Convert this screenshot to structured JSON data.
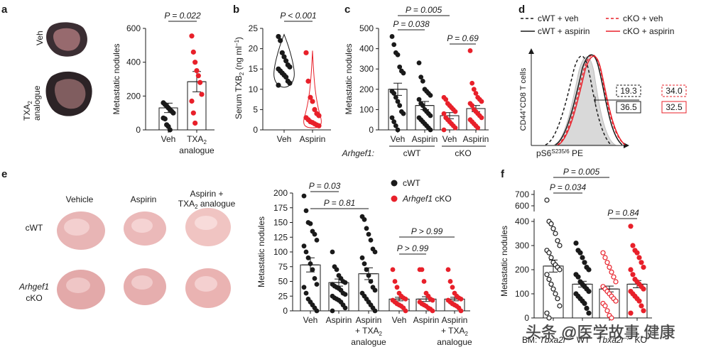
{
  "panels": {
    "a": {
      "letter": "a",
      "image_labels": [
        "Veh",
        "TXA",
        "analogue"
      ],
      "image_label_sub": "2",
      "chart_data": {
        "type": "bar",
        "categories": [
          "Veh",
          "TXA2 analogue"
        ],
        "tick_labels": [
          "Veh",
          "TXA",
          "analogue"
        ],
        "means": [
          130,
          285
        ],
        "sem": [
          28,
          60
        ],
        "points": [
          [
            160,
            150,
            140,
            130,
            120,
            110,
            100,
            70,
            65,
            30,
            20,
            0
          ],
          [
            555,
            460,
            400,
            350,
            320,
            280,
            210,
            170,
            100,
            40
          ]
        ],
        "colors": [
          "#1a1a1a",
          "#e8202a"
        ],
        "ylabel": "Metastatic nodules",
        "yticks": [
          0,
          200,
          400,
          600
        ],
        "ylim": [
          0,
          600
        ],
        "pvalue": "P = 0.022"
      }
    },
    "b": {
      "letter": "b",
      "chart_data": {
        "type": "violin",
        "categories": [
          "Veh",
          "Aspirin"
        ],
        "points": [
          [
            23,
            22,
            19,
            18,
            17,
            16,
            15.5,
            15,
            14.5,
            14,
            13.5,
            13,
            12,
            11.5,
            11
          ],
          [
            19,
            12,
            8,
            7,
            5,
            4,
            3.5,
            3,
            2.5,
            2,
            1.8,
            1.5,
            1.2,
            1
          ]
        ],
        "colors": [
          "#1a1a1a",
          "#e8202a"
        ],
        "ylabel": "Serum TXB",
        "ylabel_sub": "2",
        "ylabel_unit": "(ng ml",
        "ylabel_sup": "−1",
        "yticks": [
          0,
          5,
          10,
          15,
          20,
          25
        ],
        "ylim": [
          0,
          25
        ],
        "pvalue": "P < 0.001"
      }
    },
    "c": {
      "letter": "c",
      "chart_data": {
        "type": "bar",
        "categories": [
          "Veh",
          "Aspirin",
          "Veh",
          "Aspirin"
        ],
        "groups": [
          "cWT",
          "cKO"
        ],
        "group_title": "Arhgef1",
        "means": [
          200,
          120,
          70,
          105
        ],
        "sem": [
          30,
          20,
          15,
          15
        ],
        "points": [
          [
            460,
            420,
            380,
            370,
            310,
            290,
            280,
            190,
            180,
            160,
            140,
            120,
            90,
            80,
            60,
            40,
            20,
            0
          ],
          [
            330,
            260,
            240,
            200,
            190,
            180,
            170,
            150,
            130,
            120,
            100,
            90,
            80,
            70,
            60,
            50,
            40,
            30,
            20,
            10,
            0
          ],
          [
            160,
            150,
            130,
            120,
            110,
            100,
            90,
            80,
            60,
            50,
            40,
            30,
            20,
            10,
            0
          ],
          [
            390,
            230,
            200,
            180,
            160,
            150,
            140,
            130,
            120,
            100,
            90,
            80,
            70,
            60,
            50,
            40,
            30,
            20,
            10
          ]
        ],
        "colors": [
          "#1a1a1a",
          "#1a1a1a",
          "#e8202a",
          "#e8202a"
        ],
        "ylabel": "Metastatic nodules",
        "yticks": [
          0,
          100,
          200,
          300,
          400,
          500
        ],
        "ylim": [
          0,
          500
        ],
        "pvalues": [
          "P = 0.005",
          "P = 0.038",
          "P = 0.69"
        ]
      }
    },
    "d": {
      "letter": "d",
      "chart_data": {
        "type": "histogram",
        "legend": [
          {
            "name": "cWT + veh",
            "color": "#1a1a1a",
            "style": "dashed"
          },
          {
            "name": "cKO + veh",
            "color": "#e8202a",
            "style": "dashed"
          },
          {
            "name": "cWT + aspirin",
            "color": "#1a1a1a",
            "style": "solid"
          },
          {
            "name": "cKO + aspirin",
            "color": "#e8202a",
            "style": "solid"
          }
        ],
        "xlabel": "pS6",
        "xlabel_sup": "S235/6",
        "xlabel_tail": " PE",
        "ylabel": "CD44",
        "ylabel_sup": "+",
        "ylabel_tail": "CD8 T cells",
        "mfi": [
          {
            "value": "19.3",
            "color": "#1a1a1a",
            "style": "dashed"
          },
          {
            "value": "34.0",
            "color": "#e8202a",
            "style": "dashed"
          },
          {
            "value": "36.5",
            "color": "#1a1a1a",
            "style": "solid"
          },
          {
            "value": "32.5",
            "color": "#e8202a",
            "style": "solid"
          }
        ]
      }
    },
    "e": {
      "letter": "e",
      "columns": [
        "Vehicle",
        "Aspirin",
        "Aspirin +",
        "TXA",
        " analogue"
      ],
      "rows": [
        "cWT",
        "Arhgef1",
        "cKO"
      ],
      "chart_data": {
        "type": "bar",
        "categories": [
          "Veh",
          "Aspirin",
          "Aspirin + TXA2 analogue",
          "Veh",
          "Aspirin",
          "Aspirin + TXA2 analogue"
        ],
        "tick_labels": [
          "Veh",
          "Aspirin",
          "Aspirin",
          "+ TXA",
          "analogue"
        ],
        "legend": [
          {
            "name": "cWT",
            "color": "#1a1a1a"
          },
          {
            "name": "Arhgef1",
            "tail": " cKO",
            "color": "#e8202a"
          }
        ],
        "means": [
          78,
          48,
          63,
          20,
          20,
          20
        ],
        "sem": [
          12,
          6,
          10,
          3,
          4,
          3
        ],
        "points": [
          [
            195,
            170,
            150,
            148,
            135,
            130,
            120,
            110,
            100,
            90,
            80,
            70,
            55,
            45,
            40,
            30,
            20,
            15,
            10,
            5,
            0
          ],
          [
            100,
            75,
            70,
            60,
            55,
            50,
            48,
            45,
            42,
            40,
            38,
            35,
            30,
            28,
            25,
            22,
            20,
            18,
            15,
            10,
            5,
            0
          ],
          [
            160,
            155,
            140,
            130,
            120,
            105,
            100,
            90,
            80,
            70,
            60,
            50,
            40,
            35,
            30,
            25,
            20,
            15,
            10,
            5,
            0
          ],
          [
            70,
            50,
            40,
            30,
            25,
            22,
            20,
            18,
            15,
            12,
            10,
            8,
            5,
            0
          ],
          [
            70,
            70,
            50,
            30,
            25,
            20,
            18,
            15,
            12,
            10,
            8,
            5,
            3,
            0
          ],
          [
            70,
            50,
            40,
            30,
            25,
            22,
            20,
            18,
            15,
            12,
            10,
            8,
            5,
            0
          ]
        ],
        "colors": [
          "#1a1a1a",
          "#1a1a1a",
          "#1a1a1a",
          "#e8202a",
          "#e8202a",
          "#e8202a"
        ],
        "ylabel": "Metastatic nodules",
        "yticks": [
          0,
          25,
          50,
          75,
          100,
          125,
          150,
          175,
          200
        ],
        "ylim": [
          0,
          200
        ],
        "pvalues": [
          "P = 0.03",
          "P = 0.81",
          "P > 0.99",
          "P > 0.99"
        ]
      }
    },
    "f": {
      "letter": "f",
      "chart_data": {
        "type": "bar",
        "categories": [
          "WT",
          "KO",
          "WT",
          "KO"
        ],
        "row_label": "BM:",
        "genotype": "Tbxa2r",
        "means": [
          215,
          140,
          120,
          140
        ],
        "sem": [
          25,
          12,
          12,
          15
        ],
        "points": [
          [
            650,
            400,
            390,
            370,
            350,
            320,
            300,
            280,
            270,
            250,
            230,
            220,
            210,
            200,
            180,
            160,
            140,
            120,
            100,
            80,
            50,
            20,
            0
          ],
          [
            310,
            280,
            270,
            250,
            230,
            210,
            200,
            180,
            170,
            150,
            140,
            130,
            120,
            110,
            100,
            90,
            80,
            70,
            60,
            40,
            20
          ],
          [
            270,
            250,
            230,
            210,
            190,
            170,
            150,
            130,
            120,
            110,
            100,
            90,
            80,
            70,
            60,
            50,
            30,
            10,
            0
          ],
          [
            380,
            300,
            280,
            270,
            250,
            230,
            210,
            200,
            180,
            160,
            150,
            140,
            130,
            120,
            110,
            100,
            90,
            80,
            70,
            50,
            30,
            20
          ]
        ],
        "filled": [
          false,
          true,
          false,
          true
        ],
        "colors": [
          "#1a1a1a",
          "#1a1a1a",
          "#e8202a",
          "#e8202a"
        ],
        "ylabel": "Metastatic nodules",
        "yticks": [
          0,
          100,
          200,
          300,
          400
        ],
        "yticks_top": [
          600,
          700
        ],
        "ylim": [
          0,
          400
        ],
        "pvalues": [
          "P = 0.005",
          "P = 0.034",
          "P = 0.84"
        ]
      }
    }
  },
  "watermark": "头条 @医学故事.健康"
}
